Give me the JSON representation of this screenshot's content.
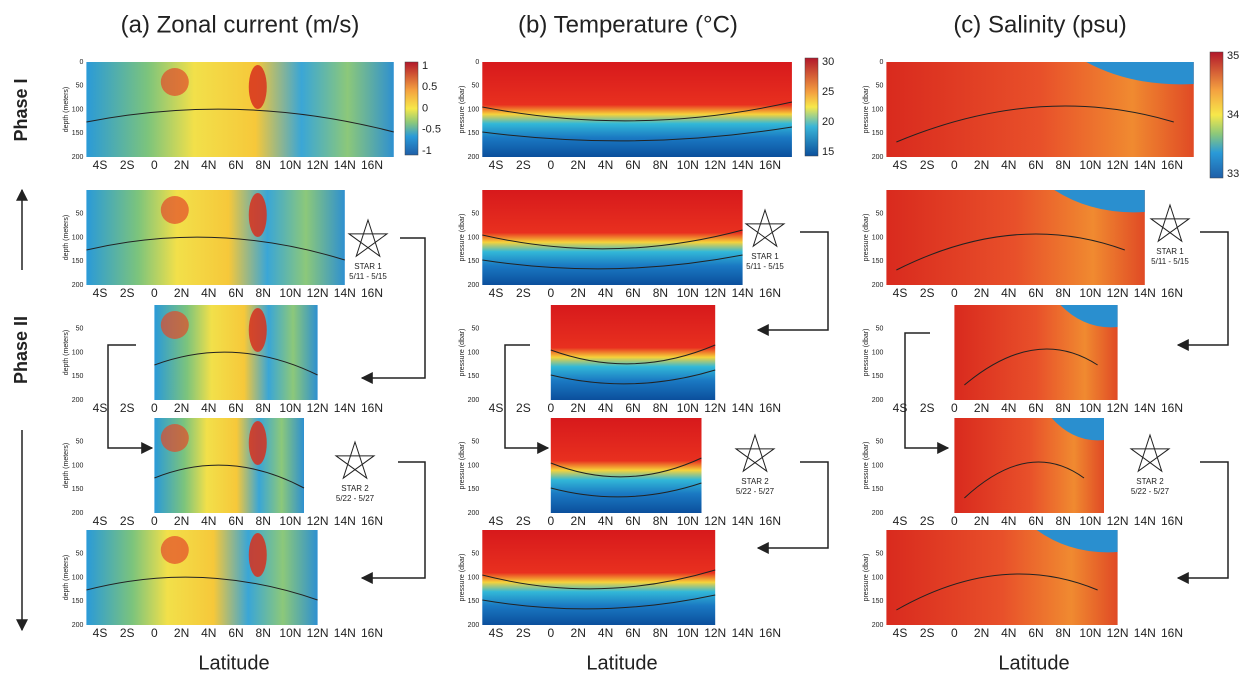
{
  "columns": [
    {
      "title": "(a) Zonal current (m/s)",
      "y_label": "depth (meters)",
      "colorbar_ticks": [
        "1",
        "0.5",
        "0",
        "-0.5",
        "-1"
      ]
    },
    {
      "title": "(b) Temperature (°C)",
      "y_label": "pressure (dbar)",
      "colorbar_ticks": [
        "30",
        "25",
        "20",
        "15"
      ]
    },
    {
      "title": "(c) Salinity (psu)",
      "y_label": "pressure (dbar)",
      "colorbar_ticks": [
        "35",
        "34",
        "33"
      ]
    }
  ],
  "y_ticks": [
    "0",
    "50",
    "100",
    "150",
    "200"
  ],
  "x_ticks": [
    "4S",
    "2S",
    "0",
    "2N",
    "4N",
    "6N",
    "8N",
    "10N",
    "12N",
    "14N",
    "16N"
  ],
  "x_label": "Latitude",
  "phases": [
    "Phase I",
    "Phase II"
  ],
  "stars": [
    {
      "name": "STAR 1",
      "dates": "5/11 - 5/15"
    },
    {
      "name": "STAR 2",
      "dates": "5/22 - 5/27"
    }
  ]
}
